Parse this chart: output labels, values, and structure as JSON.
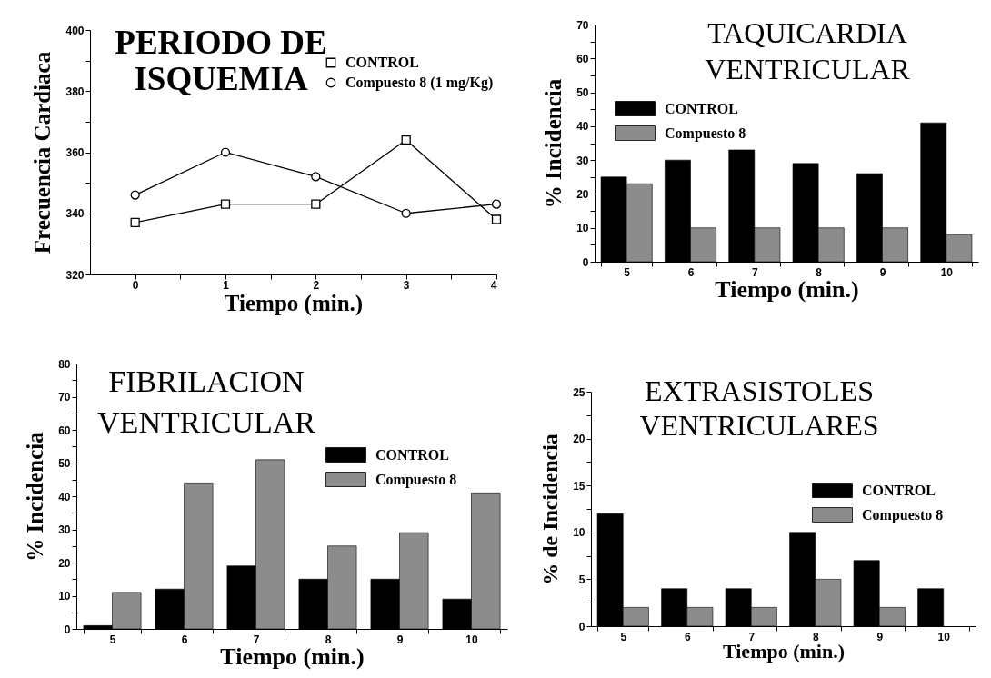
{
  "chart_data": [
    {
      "type": "line",
      "title": "PERIODO DE ISQUEMIA",
      "xlabel": "Tiempo (min.)",
      "ylabel": "Frecuencia Cardiaca",
      "x": [
        0,
        1,
        2,
        3,
        4
      ],
      "series": [
        {
          "name": "CONTROL",
          "color": "#000000",
          "marker": "square",
          "values": [
            337,
            343,
            343,
            364,
            338
          ]
        },
        {
          "name": "Compuesto 8 (1 mg/Kg)",
          "color": "#000000",
          "marker": "circle",
          "values": [
            346,
            360,
            352,
            340,
            343
          ]
        }
      ],
      "xlim": [
        -0.5,
        4
      ],
      "xticks": [
        0,
        {
          "value": 0.5,
          "label": null
        },
        1,
        {
          "value": 1.5,
          "label": null
        },
        2,
        {
          "value": 2.5,
          "label": null
        },
        3,
        {
          "value": 3.5,
          "label": null
        },
        4
      ],
      "ylim": [
        320,
        400
      ],
      "yticks": [
        320,
        {
          "value": 330,
          "label": null
        },
        340,
        {
          "value": 350,
          "label": null
        },
        360,
        {
          "value": 370,
          "label": null
        },
        380,
        {
          "value": 390,
          "label": null
        },
        400
      ],
      "legend": "top right"
    },
    {
      "type": "bar",
      "title": "TAQUICARDIA VENTRICULAR",
      "xlabel": "Tiempo (min.)",
      "ylabel": "% Incidencia",
      "categories": [
        "5",
        "6",
        "7",
        "8",
        "9",
        "10"
      ],
      "series": [
        {
          "name": "CONTROL",
          "color": "#000000",
          "values": [
            25,
            30,
            33,
            29,
            26,
            41
          ]
        },
        {
          "name": "Compuesto 8",
          "color": "#8c8c8c",
          "values": [
            23,
            10,
            10,
            10,
            10,
            8
          ]
        }
      ],
      "ylim": [
        0,
        70
      ],
      "yticks": [
        0,
        {
          "value": 5,
          "label": null
        },
        10,
        {
          "value": 15,
          "label": null
        },
        20,
        {
          "value": 25,
          "label": null
        },
        30,
        {
          "value": 35,
          "label": null
        },
        40,
        {
          "value": 45,
          "label": null
        },
        50,
        {
          "value": 55,
          "label": null
        },
        60,
        {
          "value": 65,
          "label": null
        },
        70
      ],
      "legend": "top left"
    },
    {
      "type": "bar",
      "title": "FIBRILACION VENTRICULAR",
      "xlabel": "Tiempo (min.)",
      "ylabel": "% Incidencia",
      "categories": [
        "5",
        "6",
        "7",
        "8",
        "9",
        "10"
      ],
      "series": [
        {
          "name": "CONTROL",
          "color": "#000000",
          "values": [
            1,
            12,
            19,
            15,
            15,
            9
          ]
        },
        {
          "name": "Compuesto 8",
          "color": "#8c8c8c",
          "values": [
            11,
            44,
            51,
            25,
            29,
            41
          ]
        }
      ],
      "ylim": [
        0,
        80
      ],
      "yticks": [
        0,
        {
          "value": 5,
          "label": null
        },
        10,
        {
          "value": 15,
          "label": null
        },
        20,
        {
          "value": 25,
          "label": null
        },
        30,
        {
          "value": 35,
          "label": null
        },
        40,
        {
          "value": 45,
          "label": null
        },
        50,
        {
          "value": 55,
          "label": null
        },
        60,
        {
          "value": 65,
          "label": null
        },
        70,
        {
          "value": 75,
          "label": null
        },
        80
      ],
      "legend": "top right"
    },
    {
      "type": "bar",
      "title": "EXTRASISTOLES VENTRICULARES",
      "xlabel": "Tiempo (min.)",
      "ylabel": "% de Incidencia",
      "categories": [
        "5",
        "6",
        "7",
        "8",
        "9",
        "10"
      ],
      "series": [
        {
          "name": "CONTROL",
          "color": "#000000",
          "values": [
            12,
            4,
            4,
            10,
            7,
            4
          ]
        },
        {
          "name": "Compuesto 8",
          "color": "#8c8c8c",
          "values": [
            2,
            2,
            2,
            5,
            2,
            null
          ]
        }
      ],
      "ylim": [
        0,
        25
      ],
      "yticks": [
        0,
        {
          "value": 2.5,
          "label": null
        },
        5,
        {
          "value": 7.5,
          "label": null
        },
        10,
        {
          "value": 12.5,
          "label": null
        },
        15,
        {
          "value": 17.5,
          "label": null
        },
        20,
        {
          "value": 22.5,
          "label": null
        },
        25
      ],
      "legend": "right"
    }
  ]
}
